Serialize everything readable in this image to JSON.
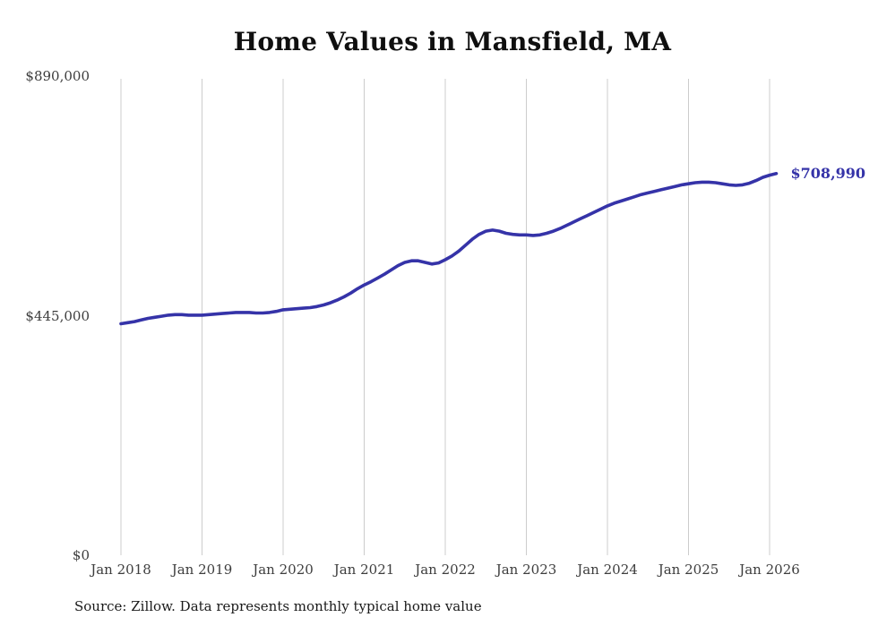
{
  "title": "Home Values in Mansfield, MA",
  "annotation": {
    "end_value_label": "$708,990"
  },
  "source": "Source: Zillow. Data represents monthly typical home value",
  "colors": {
    "line": "#3533a8",
    "grid": "#cccccc",
    "tick_text": "#3d3d3d",
    "title_text": "#0f0f0f",
    "source_text": "#1a1a1a"
  },
  "chart_data": {
    "type": "line",
    "title": "Home Values in Mansfield, MA",
    "xlabel": "",
    "ylabel": "",
    "x_start": "Jan 2018",
    "frequency": "monthly",
    "x_tick_labels": [
      "Jan 2018",
      "Jan 2019",
      "Jan 2020",
      "Jan 2021",
      "Jan 2022",
      "Jan 2023",
      "Jan 2024",
      "Jan 2025",
      "Jan 2026"
    ],
    "y_ticks": [
      {
        "label": "$0",
        "value": 0
      },
      {
        "label": "$445,000",
        "value": 445000
      },
      {
        "label": "$890,000",
        "value": 890000
      }
    ],
    "ylim": [
      0,
      890000
    ],
    "grid": "vertical-only",
    "legend": "none",
    "end_label": "$708,990",
    "series": [
      {
        "name": "Typical home value",
        "values": [
          430000,
          432000,
          434000,
          437000,
          440000,
          442000,
          444000,
          446000,
          447000,
          447000,
          446000,
          446000,
          446000,
          447000,
          448000,
          449000,
          450000,
          451000,
          451000,
          451000,
          450000,
          450000,
          451000,
          453000,
          456000,
          457000,
          458000,
          459000,
          460000,
          462000,
          465000,
          469000,
          474000,
          480000,
          487000,
          495000,
          502000,
          508000,
          515000,
          522000,
          530000,
          538000,
          544000,
          547000,
          547000,
          544000,
          541000,
          543000,
          549000,
          556000,
          565000,
          576000,
          587000,
          596000,
          602000,
          604000,
          602000,
          598000,
          596000,
          595000,
          595000,
          594000,
          595000,
          598000,
          602000,
          607000,
          613000,
          619000,
          625000,
          631000,
          637000,
          643000,
          649000,
          654000,
          658000,
          662000,
          666000,
          670000,
          673000,
          676000,
          679000,
          682000,
          685000,
          688000,
          690000,
          692000,
          693000,
          693000,
          692000,
          690000,
          688000,
          687000,
          688000,
          691000,
          696000,
          702000,
          706000,
          708990
        ]
      }
    ]
  }
}
